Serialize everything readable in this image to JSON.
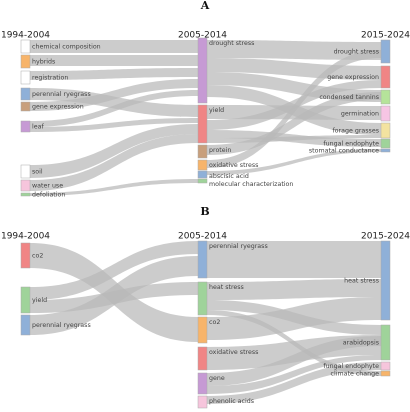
{
  "panels": [
    {
      "label": "A",
      "periods": [
        "1994-2004",
        "2005-2014",
        "2015-2024"
      ],
      "columns": [
        [
          {
            "label": "chemical composition",
            "color": "#ffffff"
          },
          {
            "label": "hybrids",
            "color": "#f7b46a"
          },
          {
            "label": "registration",
            "color": "#ffffff"
          },
          {
            "label": "perennial ryegrass",
            "color": "#8fb0d8"
          },
          {
            "label": "gene expression",
            "color": "#c89f7c"
          },
          {
            "label": "leaf",
            "color": "#c69ad4"
          },
          {
            "label": "soil",
            "color": "#ffffff"
          },
          {
            "label": "water use",
            "color": "#f6c5dc"
          },
          {
            "label": "defoliation",
            "color": "#9fd39a"
          }
        ],
        [
          {
            "label": "drought stress",
            "color": "#c69ad4"
          },
          {
            "label": "yield",
            "color": "#f08585"
          },
          {
            "label": "protein",
            "color": "#c89f7c"
          },
          {
            "label": "oxidative stress",
            "color": "#f7b46a"
          },
          {
            "label": "abscisic acid",
            "color": "#8fb0d8"
          },
          {
            "label": "molecular characterization",
            "color": "#9fd39a"
          }
        ],
        [
          {
            "label": "drought stress",
            "color": "#8fb0d8"
          },
          {
            "label": "gene expression",
            "color": "#f08585"
          },
          {
            "label": "condensed tannins",
            "color": "#b5e39a"
          },
          {
            "label": "germination",
            "color": "#f6c5e4"
          },
          {
            "label": "forage grasses",
            "color": "#f3e3a0"
          },
          {
            "label": "fungal endophyte",
            "color": "#9fd39a"
          },
          {
            "label": "stomatal conductance",
            "color": "#8fb0d8"
          }
        ]
      ]
    },
    {
      "label": "B",
      "periods": [
        "1994-2004",
        "2005-2014",
        "2015-2024"
      ],
      "columns": [
        [
          {
            "label": "co2",
            "color": "#f08585"
          },
          {
            "label": "yield",
            "color": "#9fd39a"
          },
          {
            "label": "perennial ryegrass",
            "color": "#8fb0d8"
          }
        ],
        [
          {
            "label": "perennial ryegrass",
            "color": "#8fb0d8"
          },
          {
            "label": "heat stress",
            "color": "#9fd39a"
          },
          {
            "label": "co2",
            "color": "#f7b46a"
          },
          {
            "label": "oxidative stress",
            "color": "#f08585"
          },
          {
            "label": "gene",
            "color": "#c69ad4"
          },
          {
            "label": "phenolic acids",
            "color": "#f6c5dc"
          }
        ],
        [
          {
            "label": "heat stress",
            "color": "#8fb0d8"
          },
          {
            "label": "arabidopsis",
            "color": "#9fd39a"
          },
          {
            "label": "fungal endophyte",
            "color": "#f6c5dc"
          },
          {
            "label": "climate change",
            "color": "#f7b46a"
          }
        ]
      ]
    }
  ]
}
